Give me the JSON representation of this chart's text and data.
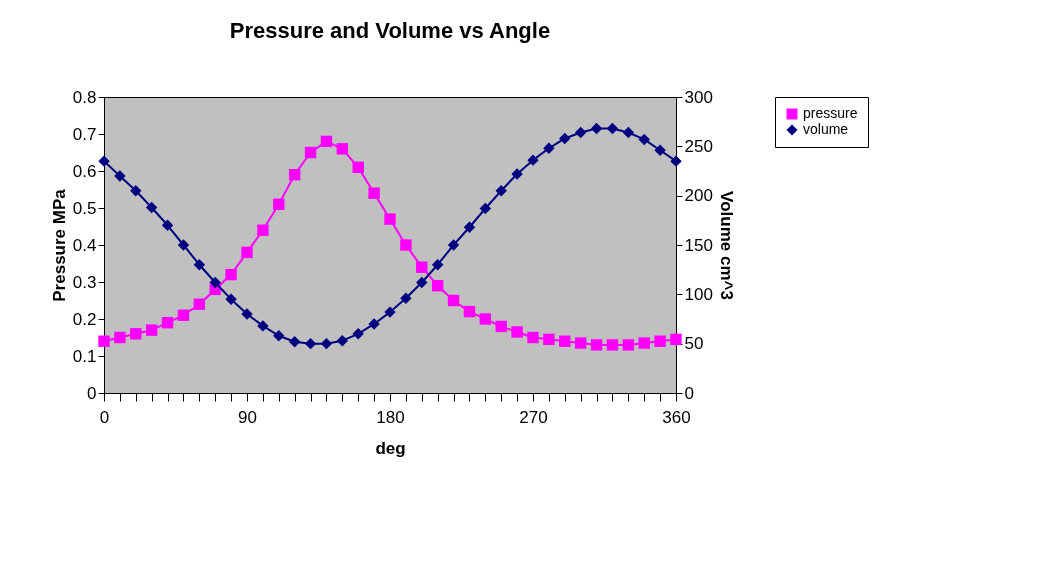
{
  "chart_data": {
    "type": "line",
    "title": "Pressure and Volume vs Angle",
    "xlabel": "deg",
    "ylabel": "Pressure MPa",
    "y2label": "Volume cm^3",
    "x": [
      0,
      10,
      20,
      30,
      40,
      50,
      60,
      70,
      80,
      90,
      100,
      110,
      120,
      130,
      140,
      150,
      160,
      170,
      180,
      190,
      200,
      210,
      220,
      230,
      240,
      250,
      260,
      270,
      280,
      290,
      300,
      310,
      320,
      330,
      340,
      350,
      360
    ],
    "series": [
      {
        "name": "pressure",
        "color": "#ff00ff",
        "marker": "square",
        "values": [
          0.14,
          0.15,
          0.16,
          0.17,
          0.19,
          0.21,
          0.24,
          0.28,
          0.32,
          0.38,
          0.44,
          0.51,
          0.59,
          0.65,
          0.68,
          0.66,
          0.61,
          0.54,
          0.47,
          0.4,
          0.34,
          0.29,
          0.25,
          0.22,
          0.2,
          0.18,
          0.165,
          0.15,
          0.145,
          0.14,
          0.135,
          0.13,
          0.13,
          0.13,
          0.135,
          0.14,
          0.145
        ]
      },
      {
        "name": "volume",
        "color": "#000080",
        "marker": "diamond",
        "axis": "y2",
        "values": [
          235,
          220,
          205,
          188,
          170,
          150,
          130,
          112,
          95,
          80,
          68,
          58,
          52,
          50,
          50,
          53,
          60,
          70,
          82,
          96,
          112,
          130,
          150,
          168,
          187,
          205,
          222,
          236,
          248,
          258,
          264,
          268,
          268,
          264,
          257,
          246,
          235
        ]
      }
    ],
    "xlim": [
      0,
      360
    ],
    "xticks": [
      0,
      {
        "value": 10,
        "label": null
      },
      {
        "value": 20,
        "label": null
      },
      {
        "value": 30,
        "label": null
      },
      {
        "value": 40,
        "label": null
      },
      {
        "value": 50,
        "label": null
      },
      {
        "value": 60,
        "label": null
      },
      {
        "value": 70,
        "label": null
      },
      {
        "value": 80,
        "label": null
      },
      90,
      {
        "value": 100,
        "label": null
      },
      {
        "value": 110,
        "label": null
      },
      {
        "value": 120,
        "label": null
      },
      {
        "value": 130,
        "label": null
      },
      {
        "value": 140,
        "label": null
      },
      {
        "value": 150,
        "label": null
      },
      {
        "value": 160,
        "label": null
      },
      {
        "value": 170,
        "label": null
      },
      180,
      {
        "value": 190,
        "label": null
      },
      {
        "value": 200,
        "label": null
      },
      {
        "value": 210,
        "label": null
      },
      {
        "value": 220,
        "label": null
      },
      {
        "value": 230,
        "label": null
      },
      {
        "value": 240,
        "label": null
      },
      {
        "value": 250,
        "label": null
      },
      {
        "value": 260,
        "label": null
      },
      270,
      {
        "value": 280,
        "label": null
      },
      {
        "value": 290,
        "label": null
      },
      {
        "value": 300,
        "label": null
      },
      {
        "value": 310,
        "label": null
      },
      {
        "value": 320,
        "label": null
      },
      {
        "value": 330,
        "label": null
      },
      {
        "value": 340,
        "label": null
      },
      {
        "value": 350,
        "label": null
      },
      360
    ],
    "ylim": [
      0,
      0.8
    ],
    "yticks": [
      0,
      0.1,
      0.2,
      0.3,
      0.4,
      0.5,
      0.6,
      0.7,
      0.8
    ],
    "y2lim": [
      0,
      300
    ],
    "y2ticks": [
      0,
      50,
      100,
      150,
      200,
      250,
      300
    ],
    "grid": false,
    "legend": "right",
    "line_style": "solid"
  }
}
